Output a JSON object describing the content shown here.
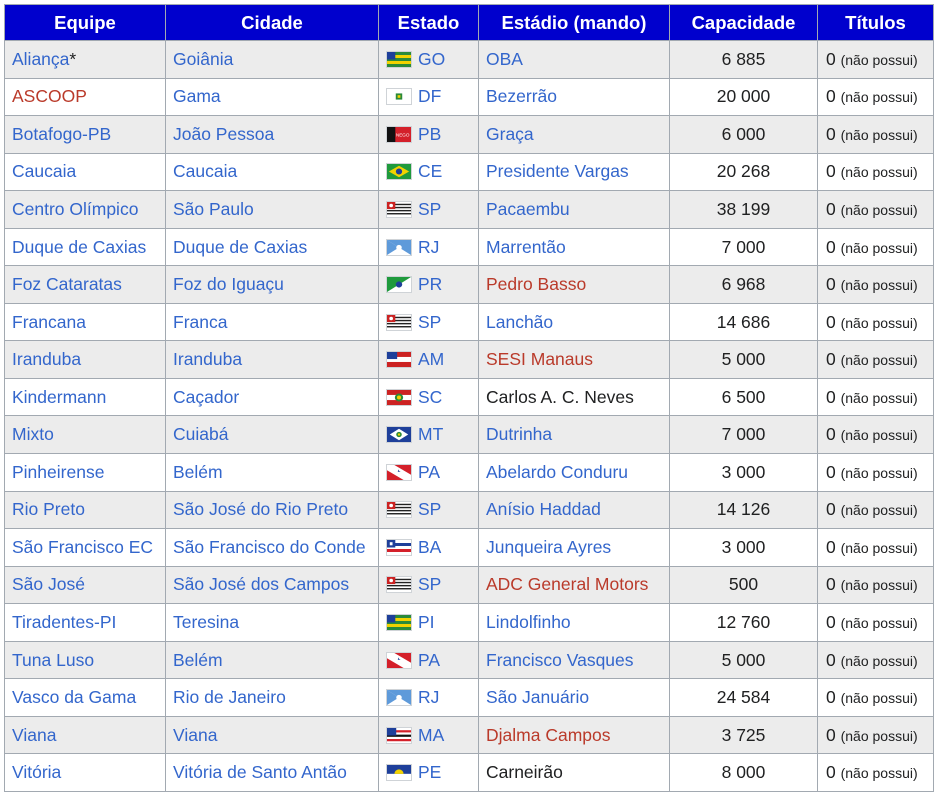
{
  "headers": {
    "equipe": "Equipe",
    "cidade": "Cidade",
    "estado": "Estado",
    "estadio": "Estádio (mando)",
    "capacidade": "Capacidade",
    "titulos": "Títulos"
  },
  "rows": [
    {
      "equipe": "Aliança",
      "mark": "*",
      "equipe_link": "blue",
      "cidade": "Goiânia",
      "estado": "GO",
      "estadio": "OBA",
      "estadio_link": "blue",
      "capacidade": "6 885",
      "titulos": "0",
      "titulos_note": "(não possui)"
    },
    {
      "equipe": "ASCOOP",
      "mark": "",
      "equipe_link": "red",
      "cidade": "Gama",
      "estado": "DF",
      "estadio": "Bezerrão",
      "estadio_link": "blue",
      "capacidade": "20 000",
      "titulos": "0",
      "titulos_note": "(não possui)"
    },
    {
      "equipe": "Botafogo-PB",
      "mark": "",
      "equipe_link": "blue",
      "cidade": "João Pessoa",
      "estado": "PB",
      "estadio": "Graça",
      "estadio_link": "blue",
      "capacidade": "6 000",
      "titulos": "0",
      "titulos_note": "(não possui)"
    },
    {
      "equipe": "Caucaia",
      "mark": "",
      "equipe_link": "blue",
      "cidade": "Caucaia",
      "estado": "CE",
      "estadio": "Presidente Vargas",
      "estadio_link": "blue",
      "capacidade": "20 268",
      "titulos": "0",
      "titulos_note": "(não possui)"
    },
    {
      "equipe": "Centro Olímpico",
      "mark": "",
      "equipe_link": "blue",
      "cidade": "São Paulo",
      "estado": "SP",
      "estadio": "Pacaembu",
      "estadio_link": "blue",
      "capacidade": "38 199",
      "titulos": "0",
      "titulos_note": "(não possui)"
    },
    {
      "equipe": "Duque de Caxias",
      "mark": "",
      "equipe_link": "blue",
      "cidade": "Duque de Caxias",
      "estado": "RJ",
      "estadio": "Marrentão",
      "estadio_link": "blue",
      "capacidade": "7 000",
      "titulos": "0",
      "titulos_note": "(não possui)"
    },
    {
      "equipe": "Foz Cataratas",
      "mark": "",
      "equipe_link": "blue",
      "cidade": "Foz do Iguaçu",
      "estado": "PR",
      "estadio": "Pedro Basso",
      "estadio_link": "red",
      "capacidade": "6 968",
      "titulos": "0",
      "titulos_note": "(não possui)"
    },
    {
      "equipe": "Francana",
      "mark": "",
      "equipe_link": "blue",
      "cidade": "Franca",
      "estado": "SP",
      "estadio": "Lanchão",
      "estadio_link": "blue",
      "capacidade": "14 686",
      "titulos": "0",
      "titulos_note": "(não possui)"
    },
    {
      "equipe": "Iranduba",
      "mark": "",
      "equipe_link": "blue",
      "cidade": "Iranduba",
      "estado": "AM",
      "estadio": "SESI Manaus",
      "estadio_link": "red",
      "capacidade": "5 000",
      "titulos": "0",
      "titulos_note": "(não possui)"
    },
    {
      "equipe": "Kindermann",
      "mark": "",
      "equipe_link": "blue",
      "cidade": "Caçador",
      "estado": "SC",
      "estadio": "Carlos A. C. Neves",
      "estadio_link": "none",
      "capacidade": "6 500",
      "titulos": "0",
      "titulos_note": "(não possui)"
    },
    {
      "equipe": "Mixto",
      "mark": "",
      "equipe_link": "blue",
      "cidade": "Cuiabá",
      "estado": "MT",
      "estadio": "Dutrinha",
      "estadio_link": "blue",
      "capacidade": "7 000",
      "titulos": "0",
      "titulos_note": "(não possui)"
    },
    {
      "equipe": "Pinheirense",
      "mark": "",
      "equipe_link": "blue",
      "cidade": "Belém",
      "estado": "PA",
      "estadio": "Abelardo Conduru",
      "estadio_link": "blue",
      "capacidade": "3 000",
      "titulos": "0",
      "titulos_note": "(não possui)"
    },
    {
      "equipe": "Rio Preto",
      "mark": "",
      "equipe_link": "blue",
      "cidade": "São José do Rio Preto",
      "estado": "SP",
      "estadio": "Anísio Haddad",
      "estadio_link": "blue",
      "capacidade": "14 126",
      "titulos": "0",
      "titulos_note": "(não possui)"
    },
    {
      "equipe": "São Francisco EC",
      "mark": "",
      "equipe_link": "blue",
      "cidade": "São Francisco do Conde",
      "estado": "BA",
      "estadio": "Junqueira Ayres",
      "estadio_link": "blue",
      "capacidade": "3 000",
      "titulos": "0",
      "titulos_note": "(não possui)"
    },
    {
      "equipe": "São José",
      "mark": "",
      "equipe_link": "blue",
      "cidade": "São José dos Campos",
      "estado": "SP",
      "estadio": "ADC General Motors",
      "estadio_link": "red",
      "capacidade": "500",
      "titulos": "0",
      "titulos_note": "(não possui)"
    },
    {
      "equipe": "Tiradentes-PI",
      "mark": "",
      "equipe_link": "blue",
      "cidade": "Teresina",
      "estado": "PI",
      "estadio": "Lindolfinho",
      "estadio_link": "blue",
      "capacidade": "12 760",
      "titulos": "0",
      "titulos_note": "(não possui)"
    },
    {
      "equipe": "Tuna Luso",
      "mark": "",
      "equipe_link": "blue",
      "cidade": "Belém",
      "estado": "PA",
      "estadio": "Francisco Vasques",
      "estadio_link": "blue",
      "capacidade": "5 000",
      "titulos": "0",
      "titulos_note": "(não possui)"
    },
    {
      "equipe": "Vasco da Gama",
      "mark": "",
      "equipe_link": "blue",
      "cidade": "Rio de Janeiro",
      "estado": "RJ",
      "estadio": "São Januário",
      "estadio_link": "blue",
      "capacidade": "24 584",
      "titulos": "0",
      "titulos_note": "(não possui)"
    },
    {
      "equipe": "Viana",
      "mark": "",
      "equipe_link": "blue",
      "cidade": "Viana",
      "estado": "MA",
      "estadio": "Djalma Campos",
      "estadio_link": "red",
      "capacidade": "3 725",
      "titulos": "0",
      "titulos_note": "(não possui)"
    },
    {
      "equipe": "Vitória",
      "mark": "",
      "equipe_link": "blue",
      "cidade": "Vitória de Santo Antão",
      "estado": "PE",
      "estadio": "Carneirão",
      "estadio_link": "none",
      "capacidade": "8 000",
      "titulos": "0",
      "titulos_note": "(não possui)"
    }
  ],
  "colors": {
    "header_bg": "#0000cd",
    "link_blue": "#3366cc",
    "link_red": "#ba3a2a",
    "row_alt": "#ececec"
  }
}
